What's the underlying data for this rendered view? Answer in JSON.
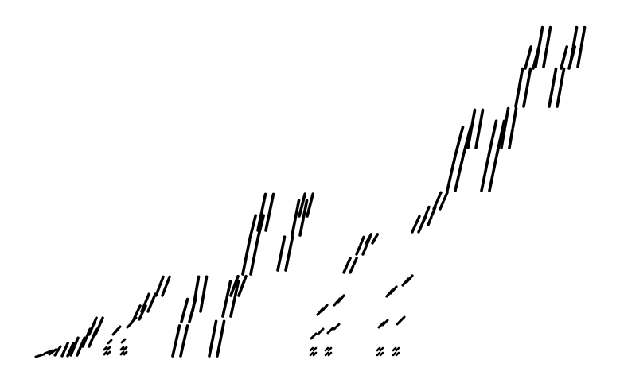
{
  "image": {
    "description_visible_text": "",
    "background_color": "#ffffff",
    "mark_color": "#000000"
  }
}
